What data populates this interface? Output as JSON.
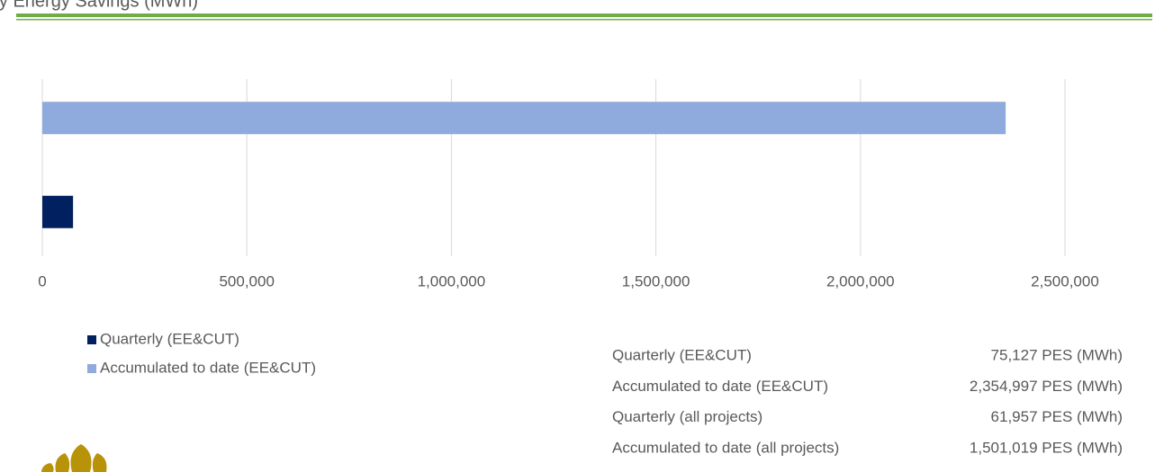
{
  "chart_data": {
    "type": "bar",
    "orientation": "horizontal",
    "title": "Primary Energy Savings (MWh)",
    "categories": [
      null,
      null
    ],
    "series": [
      {
        "name": "Quarterly (EE&CUT)",
        "color": "#002060",
        "values": [
          null,
          75127
        ]
      },
      {
        "name": "Accumulated to date (EE&CUT)",
        "color": "#8faadc",
        "values": [
          2354997,
          null
        ]
      }
    ],
    "xlim": [
      0,
      2500000
    ],
    "xticks": [
      0,
      {
        "value": 500000,
        "label": "500,000"
      },
      {
        "value": 1000000,
        "label": "1,000,000"
      },
      {
        "value": 1500000,
        "label": "1,500,000"
      },
      {
        "value": 2000000,
        "label": "2,000,000"
      },
      {
        "value": 2500000,
        "label": "2,500,000"
      }
    ],
    "grid": true,
    "legend": "bottom-left"
  },
  "table": {
    "rows": [
      [
        "Quarterly (EE&CUT)",
        "75,127 PES (MWh)"
      ],
      [
        "Accumulated to date (EE&CUT)",
        "2,354,997 PES (MWh)"
      ],
      [
        "Quarterly (all projects)",
        "61,957 PES (MWh)"
      ],
      [
        "Accumulated to date (all projects)",
        "1,501,019 PES (MWh)"
      ]
    ]
  }
}
